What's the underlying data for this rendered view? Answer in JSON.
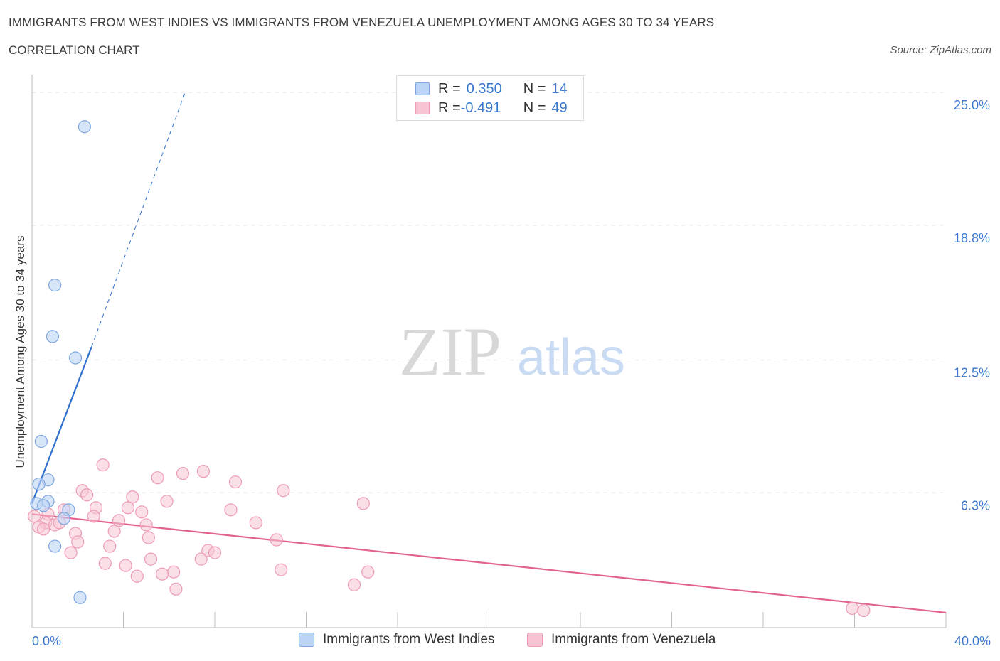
{
  "title": "IMMIGRANTS FROM WEST INDIES VS IMMIGRANTS FROM VENEZUELA UNEMPLOYMENT AMONG AGES 30 TO 34 YEARS",
  "subtitle": "CORRELATION CHART",
  "source": "Source: ZipAtlas.com",
  "watermark": {
    "zip": "ZIP",
    "atlas": "atlas"
  },
  "legend": {
    "rows": [
      {
        "r_label": "R = ",
        "r_value": "0.350",
        "n_label": "N = ",
        "n_value": "14"
      },
      {
        "r_label": "R = ",
        "r_value": "-0.491",
        "n_label": "N = ",
        "n_value": "49"
      }
    ]
  },
  "colors": {
    "west_indies_fill": "#bcd4f5",
    "west_indies_stroke": "#7ea7e0",
    "west_indies_line": "#2f6fcd",
    "venezuela_fill": "#f8c4d3",
    "venezuela_stroke": "#ee9bb5",
    "venezuela_line": "#e2638f",
    "axis_label": "#3a77cc",
    "grid": "#e3e3e3"
  },
  "chart_data": {
    "type": "scatter",
    "title": "IMMIGRANTS FROM WEST INDIES VS IMMIGRANTS FROM VENEZUELA UNEMPLOYMENT AMONG AGES 30 TO 34 YEARS",
    "xlabel": "",
    "ylabel": "Unemployment Among Ages 30 to 34 years",
    "xlim": [
      0,
      40
    ],
    "ylim": [
      0,
      25
    ],
    "x_tick_labels": [
      "0.0%",
      "40.0%"
    ],
    "y_ticks": [
      6.3,
      12.5,
      18.8,
      25.0
    ],
    "y_tick_labels": [
      "6.3%",
      "12.5%",
      "18.8%",
      "25.0%"
    ],
    "grid": true,
    "series": [
      {
        "name": "Immigrants from West Indies",
        "points": [
          [
            2.3,
            23.4
          ],
          [
            1.0,
            16.0
          ],
          [
            0.9,
            13.6
          ],
          [
            1.9,
            12.6
          ],
          [
            0.4,
            8.7
          ],
          [
            0.7,
            6.9
          ],
          [
            0.3,
            6.7
          ],
          [
            0.7,
            5.9
          ],
          [
            0.2,
            5.8
          ],
          [
            0.5,
            5.7
          ],
          [
            1.6,
            5.5
          ],
          [
            1.4,
            5.1
          ],
          [
            1.0,
            3.8
          ],
          [
            2.1,
            1.4
          ]
        ],
        "trend": {
          "x": [
            0,
            2.6
          ],
          "y": [
            5.8,
            13.1
          ]
        },
        "trend_dashed": {
          "x": [
            2.6,
            6.7
          ],
          "y": [
            13.1,
            25.0
          ]
        }
      },
      {
        "name": "Immigrants from Venezuela",
        "points": [
          [
            3.1,
            7.6
          ],
          [
            5.5,
            7.0
          ],
          [
            6.6,
            7.2
          ],
          [
            7.5,
            7.3
          ],
          [
            8.9,
            6.8
          ],
          [
            11.0,
            6.4
          ],
          [
            14.5,
            5.8
          ],
          [
            2.2,
            6.4
          ],
          [
            2.4,
            6.2
          ],
          [
            4.4,
            6.1
          ],
          [
            5.9,
            5.9
          ],
          [
            4.2,
            5.6
          ],
          [
            2.8,
            5.6
          ],
          [
            1.4,
            5.5
          ],
          [
            4.8,
            5.4
          ],
          [
            8.7,
            5.5
          ],
          [
            0.7,
            5.3
          ],
          [
            2.7,
            5.2
          ],
          [
            3.8,
            5.0
          ],
          [
            9.8,
            4.9
          ],
          [
            0.6,
            4.9
          ],
          [
            1.0,
            4.8
          ],
          [
            1.2,
            4.9
          ],
          [
            5.0,
            4.8
          ],
          [
            0.3,
            4.7
          ],
          [
            0.5,
            4.6
          ],
          [
            3.6,
            4.5
          ],
          [
            1.9,
            4.4
          ],
          [
            5.1,
            4.2
          ],
          [
            10.7,
            4.1
          ],
          [
            2.0,
            4.0
          ],
          [
            3.4,
            3.8
          ],
          [
            1.7,
            3.5
          ],
          [
            7.7,
            3.6
          ],
          [
            8.0,
            3.5
          ],
          [
            5.2,
            3.2
          ],
          [
            7.4,
            3.2
          ],
          [
            3.2,
            3.0
          ],
          [
            4.1,
            2.9
          ],
          [
            10.9,
            2.7
          ],
          [
            6.2,
            2.6
          ],
          [
            14.7,
            2.6
          ],
          [
            5.7,
            2.5
          ],
          [
            4.6,
            2.4
          ],
          [
            14.1,
            2.0
          ],
          [
            6.3,
            1.8
          ],
          [
            35.9,
            0.9
          ],
          [
            36.4,
            0.8
          ],
          [
            0.1,
            5.2
          ]
        ],
        "trend": {
          "x": [
            0,
            40
          ],
          "y": [
            5.3,
            0.7
          ]
        }
      }
    ]
  },
  "bottom_legend": [
    "Immigrants from West Indies",
    "Immigrants from Venezuela"
  ]
}
